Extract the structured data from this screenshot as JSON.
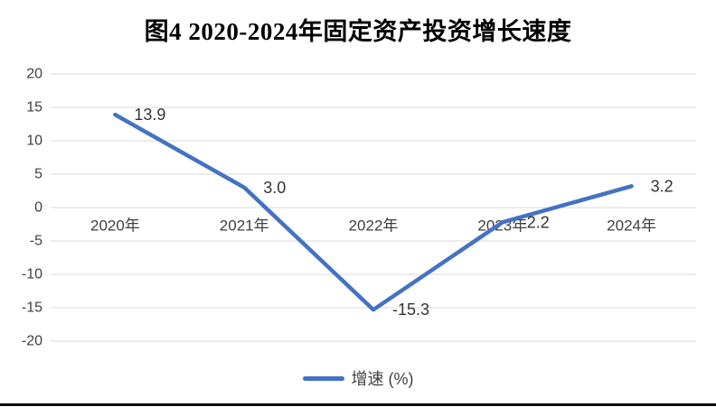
{
  "chart_data": {
    "type": "line",
    "title": "图4 2020-2024年固定资产投资增长速度",
    "categories": [
      "2020年",
      "2021年",
      "2022年",
      "2023年",
      "2024年"
    ],
    "series": [
      {
        "name": "增速 (%)",
        "color": "#4472c4",
        "values": [
          13.9,
          3.0,
          -15.3,
          -2.2,
          3.2
        ]
      }
    ],
    "data_labels": [
      "13.9",
      "3.0",
      "-15.3",
      "-2.2",
      "3.2"
    ],
    "xlabel": "",
    "ylabel": "",
    "ylim": [
      -20,
      20
    ],
    "yticks": [
      20,
      15,
      10,
      5,
      0,
      -5,
      -10,
      -15,
      -20
    ],
    "grid": "horizontal",
    "gridline_color": "#d9d9d9",
    "axis_label_color": "#404040",
    "legend_position": "bottom"
  }
}
